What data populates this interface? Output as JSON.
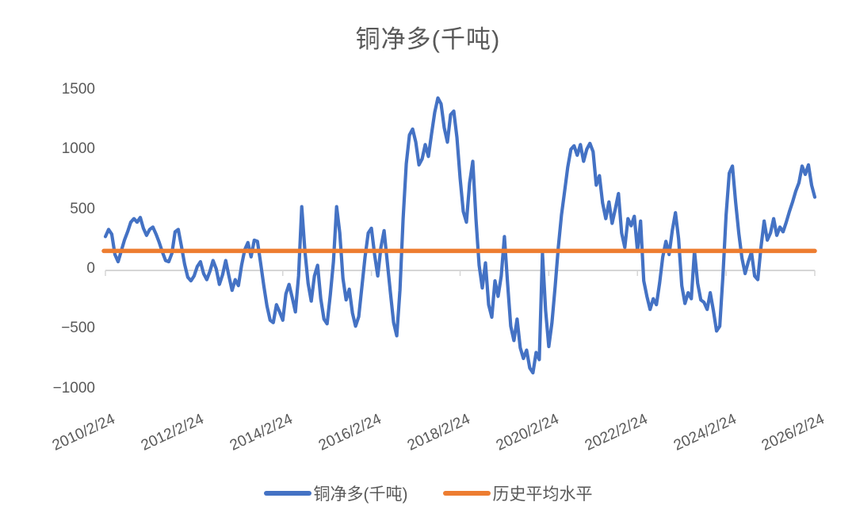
{
  "title": "铜净多(千吨)",
  "colors": {
    "series_blue": "#4472C4",
    "series_orange": "#ED7D31",
    "text_gray": "#595959",
    "axis_gray": "#D6D6D6",
    "background": "#FFFFFF"
  },
  "chart_data": {
    "type": "line",
    "title": "铜净多(千吨)",
    "ylabel": "",
    "xlabel": "",
    "ylim": [
      -1000,
      1500
    ],
    "y_ticks": [
      1500,
      1000,
      500,
      0,
      -500,
      -1000
    ],
    "x_tick_labels": [
      "2010/2/24",
      "2012/2/24",
      "2014/2/24",
      "2016/2/24",
      "2018/2/24",
      "2020/2/24",
      "2022/2/24",
      "2024/2/24",
      "2026/2/24"
    ],
    "grid": "zero-axis-line-only",
    "legend_position": "bottom",
    "series": [
      {
        "name": "铜净多(千吨)",
        "type": "line",
        "color": "#4472C4",
        "values": [
          270,
          330,
          290,
          120,
          60,
          150,
          240,
          310,
          390,
          420,
          390,
          430,
          340,
          280,
          330,
          350,
          290,
          220,
          140,
          70,
          60,
          130,
          310,
          330,
          190,
          40,
          -70,
          -100,
          -60,
          20,
          60,
          -40,
          -90,
          -20,
          70,
          0,
          -130,
          -50,
          70,
          -60,
          -180,
          -90,
          -140,
          30,
          160,
          220,
          100,
          240,
          230,
          50,
          -140,
          -310,
          -430,
          -450,
          -300,
          -360,
          -430,
          -210,
          -130,
          -240,
          -360,
          -60,
          520,
          150,
          -120,
          -270,
          -60,
          30,
          -250,
          -420,
          -460,
          -220,
          60,
          520,
          300,
          -80,
          -260,
          -170,
          -370,
          -480,
          -400,
          -150,
          100,
          300,
          340,
          120,
          -60,
          180,
          320,
          60,
          -200,
          -450,
          -560,
          -180,
          420,
          880,
          1120,
          1170,
          1060,
          870,
          920,
          1040,
          940,
          1130,
          1310,
          1430,
          1380,
          1180,
          1060,
          1290,
          1320,
          1100,
          760,
          480,
          390,
          720,
          900,
          420,
          30,
          -160,
          50,
          -300,
          -405,
          -100,
          -230,
          -60,
          270,
          -120,
          -480,
          -600,
          -420,
          -660,
          -750,
          -680,
          -830,
          -870,
          -700,
          -760,
          130,
          -350,
          -650,
          -450,
          -150,
          180,
          450,
          650,
          850,
          1000,
          1030,
          950,
          1040,
          900,
          1000,
          1050,
          980,
          700,
          780,
          550,
          420,
          560,
          380,
          500,
          630,
          300,
          180,
          420,
          360,
          440,
          150,
          400,
          -100,
          -230,
          -340,
          -250,
          -300,
          -120,
          100,
          230,
          120,
          320,
          470,
          250,
          -140,
          -290,
          -200,
          -250,
          150,
          -120,
          -260,
          -280,
          -340,
          -200,
          -350,
          -520,
          -480,
          -60,
          450,
          800,
          860,
          560,
          300,
          90,
          -40,
          60,
          140,
          -60,
          -90,
          180,
          400,
          240,
          300,
          420,
          280,
          350,
          310,
          390,
          480,
          560,
          650,
          720,
          860,
          790,
          870,
          700,
          600
        ]
      },
      {
        "name": "历史平均水平",
        "type": "constant-line",
        "color": "#ED7D31",
        "value": 150
      }
    ]
  }
}
